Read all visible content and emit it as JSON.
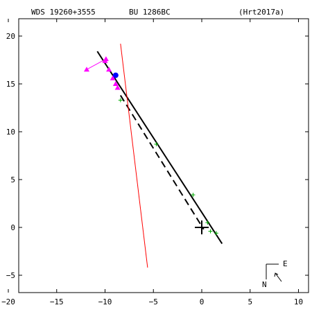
{
  "header": {
    "left": "WDS 19260+3555",
    "center": "BU 1286BC",
    "right": "(Hrt2017a)"
  },
  "compass": {
    "east_label": "E",
    "north_label": "N"
  },
  "colors": {
    "orbit": "#000000",
    "apsides": "#000000",
    "nodes": "#ff0000",
    "observations": "#00aa00",
    "speckle": "#ff00ff",
    "latest": "#0000ff"
  },
  "chart_data": {
    "type": "scatter",
    "title": "",
    "xlabel": "",
    "ylabel": "",
    "xlim": [
      -20,
      11
    ],
    "ylim": [
      -8,
      22
    ],
    "x_ticks": [
      -20,
      -15,
      -10,
      -5,
      0,
      5,
      10
    ],
    "y_ticks": [
      20,
      15,
      10,
      5,
      0,
      -5
    ],
    "x_tick_labels": [
      "−20",
      "−15",
      "−10",
      "−5",
      "0",
      "5",
      "10"
    ],
    "y_tick_labels": [
      "20",
      "15",
      "10",
      "5",
      "0",
      "−5"
    ],
    "primary_star": {
      "x": 0,
      "y": 0
    },
    "orbit_line": [
      [
        -10.8,
        18.4
      ],
      [
        2.1,
        -1.7
      ]
    ],
    "apsidal_dashed": [
      [
        -8.4,
        13.8
      ],
      [
        0.2,
        -0.2
      ]
    ],
    "node_line": [
      [
        -8.4,
        19.2
      ],
      [
        -5.6,
        -4.2
      ]
    ],
    "observations": [
      {
        "x": -4.7,
        "y": 8.7
      },
      {
        "x": -0.9,
        "y": 3.4
      },
      {
        "x": 0.6,
        "y": 0.5
      },
      {
        "x": 0.9,
        "y": -0.4
      },
      {
        "x": 1.5,
        "y": -0.6
      },
      {
        "x": -8.4,
        "y": 13.3
      }
    ],
    "speckle_points": [
      {
        "x": -9.9,
        "y": 17.6
      },
      {
        "x": -10.0,
        "y": 17.4
      },
      {
        "x": -9.6,
        "y": 16.5
      },
      {
        "x": -9.2,
        "y": 15.6
      },
      {
        "x": -8.9,
        "y": 15.0
      },
      {
        "x": -8.7,
        "y": 14.6
      },
      {
        "x": -11.9,
        "y": 16.5
      }
    ],
    "speckle_residuals": [
      [
        [
          -9.9,
          17.6
        ],
        [
          -11.9,
          16.5
        ]
      ]
    ],
    "latest_point": {
      "x": -8.9,
      "y": 15.9
    }
  }
}
